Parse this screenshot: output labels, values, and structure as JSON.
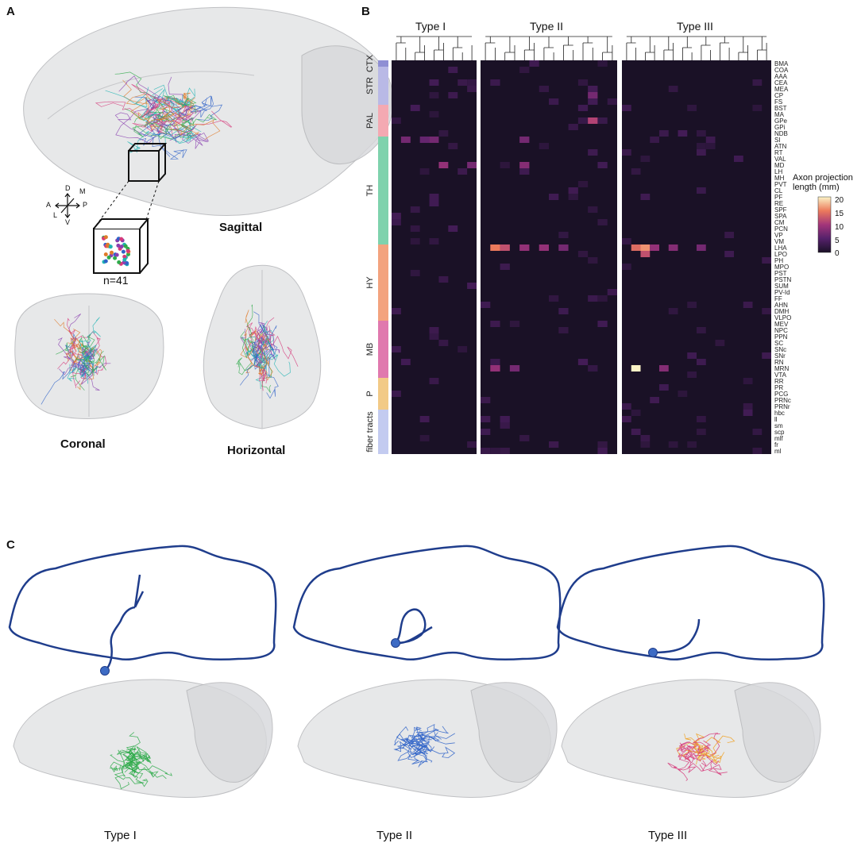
{
  "panels": {
    "a": "A",
    "b": "B",
    "c": "C"
  },
  "panel_a": {
    "views": {
      "sagittal": "Sagittal",
      "coronal": "Coronal",
      "horizontal": "Horizontal"
    },
    "sample_count": "n=41",
    "axes": {
      "dorsal": "D",
      "ventral": "V",
      "anterior": "A",
      "posterior": "P",
      "medial": "M",
      "lateral": "L"
    },
    "neuron_colors": [
      "#2eaa4a",
      "#2f63c8",
      "#8a3fb0",
      "#d63a7a",
      "#1fb3b3",
      "#e07a2a"
    ]
  },
  "chart_data": {
    "type": "heatmap",
    "columns_per_type": [
      9,
      14,
      16
    ],
    "column_groups": [
      "Type I",
      "Type II",
      "Type III"
    ],
    "rows": [
      "BMA",
      "COA",
      "AAA",
      "CEA",
      "MEA",
      "CP",
      "FS",
      "BST",
      "MA",
      "GPe",
      "GPi",
      "NDB",
      "SI",
      "ATN",
      "RT",
      "VAL",
      "MD",
      "LH",
      "MH",
      "PVT",
      "CL",
      "PF",
      "RE",
      "SPF",
      "SPA",
      "CM",
      "PCN",
      "VP",
      "VM",
      "LHA",
      "LPO",
      "PH",
      "MPO",
      "PST",
      "PSTN",
      "SUM",
      "PV-Id",
      "FF",
      "AHN",
      "DMH",
      "VLPO",
      "MEV",
      "NPC",
      "PPN",
      "SC",
      "SNc",
      "SNr",
      "RN",
      "MRN",
      "VTA",
      "RR",
      "PR",
      "PCG",
      "PRNc",
      "PRNr",
      "hbc",
      "ll",
      "sm",
      "scp",
      "mlf",
      "fr",
      "ml"
    ],
    "row_groups": [
      {
        "name": "CTX",
        "start": 0,
        "end": 1,
        "color": "#8f8fd4"
      },
      {
        "name": "STR",
        "start": 1,
        "end": 7,
        "color": "#b9b9e6"
      },
      {
        "name": "PAL",
        "start": 7,
        "end": 12,
        "color": "#f4a9b2"
      },
      {
        "name": "TH",
        "start": 12,
        "end": 29,
        "color": "#7fd2ad"
      },
      {
        "name": "HY",
        "start": 29,
        "end": 41,
        "color": "#f3a37e"
      },
      {
        "name": "MB",
        "start": 41,
        "end": 50,
        "color": "#e079ae"
      },
      {
        "name": "P",
        "start": 50,
        "end": 55,
        "color": "#f2ca86"
      },
      {
        "name": "fiber tracts",
        "start": 55,
        "end": 62,
        "color": "#c3cbf0"
      }
    ],
    "strong_cells": [
      {
        "row": "LHA",
        "col": 10,
        "value": 15
      },
      {
        "row": "LHA",
        "col": 11,
        "value": 12
      },
      {
        "row": "LHA",
        "col": 13,
        "value": 9
      },
      {
        "row": "LHA",
        "col": 15,
        "value": 9
      },
      {
        "row": "LHA",
        "col": 17,
        "value": 7
      },
      {
        "row": "LHA",
        "col": 24,
        "value": 14
      },
      {
        "row": "LHA",
        "col": 25,
        "value": 16
      },
      {
        "row": "LHA",
        "col": 26,
        "value": 9
      },
      {
        "row": "LHA",
        "col": 28,
        "value": 8
      },
      {
        "row": "LHA",
        "col": 31,
        "value": 7
      },
      {
        "row": "LPO",
        "col": 25,
        "value": 12
      },
      {
        "row": "MRN",
        "col": 24,
        "value": 20
      },
      {
        "row": "MRN",
        "col": 10,
        "value": 9
      },
      {
        "row": "MRN",
        "col": 12,
        "value": 7
      },
      {
        "row": "MRN",
        "col": 27,
        "value": 8
      },
      {
        "row": "MD",
        "col": 5,
        "value": 9
      },
      {
        "row": "MD",
        "col": 8,
        "value": 7
      },
      {
        "row": "MD",
        "col": 13,
        "value": 8
      },
      {
        "row": "SI",
        "col": 1,
        "value": 7
      },
      {
        "row": "SI",
        "col": 3,
        "value": 6
      },
      {
        "row": "SI",
        "col": 4,
        "value": 7
      },
      {
        "row": "SI",
        "col": 13,
        "value": 7
      },
      {
        "row": "GPe",
        "col": 20,
        "value": 11
      },
      {
        "row": "CP",
        "col": 20,
        "value": 7
      }
    ],
    "colorbar": {
      "title": "Axon projection\nlength (mm)",
      "ticks": [
        20,
        15,
        10,
        5,
        0
      ],
      "range": [
        0,
        20
      ]
    }
  },
  "panel_c": {
    "types": [
      "Type I",
      "Type II",
      "Type III"
    ],
    "type_colors": [
      "#2eaa4a",
      "#2f63c8",
      "#d63a7a"
    ],
    "outline_color": "#1f3d8c"
  }
}
